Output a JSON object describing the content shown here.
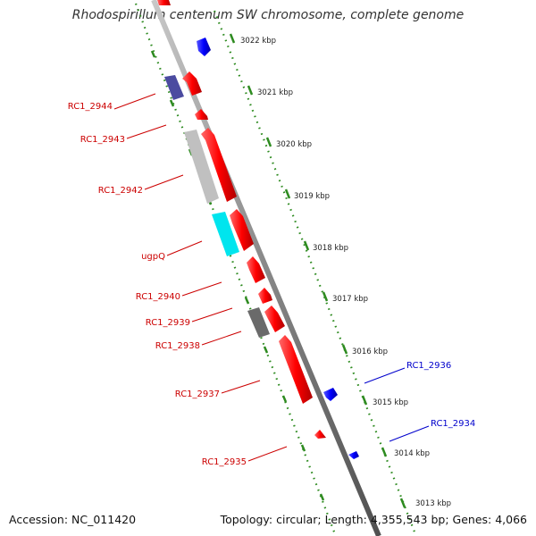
{
  "title": "Rhodospirillum centenum SW chromosome, complete genome",
  "footer": {
    "accession": "Accession: NC_011420",
    "summary": "Topology: circular; Length: 4,355,543 bp; Genes: 4,066"
  },
  "colors": {
    "forward_gene": "#ff0000",
    "reverse_gene": "#0000ff",
    "tick_green": "#2e8b20",
    "forward_label": "#cc0000",
    "reverse_label": "#0000cc",
    "ruler_label": "#222222"
  },
  "ruler_labels": [
    "3022 kbp",
    "3021 kbp",
    "3020 kbp",
    "3019 kbp",
    "3018 kbp",
    "3017 kbp",
    "3016 kbp",
    "3015 kbp",
    "3014 kbp",
    "3013 kbp"
  ],
  "gene_labels": [
    "RC1_2944",
    "RC1_2943",
    "RC1_2942",
    "ugpQ",
    "RC1_2940",
    "RC1_2939",
    "RC1_2938",
    "RC1_2937",
    "RC1_2935",
    "RC1_2936",
    "RC1_2934"
  ]
}
